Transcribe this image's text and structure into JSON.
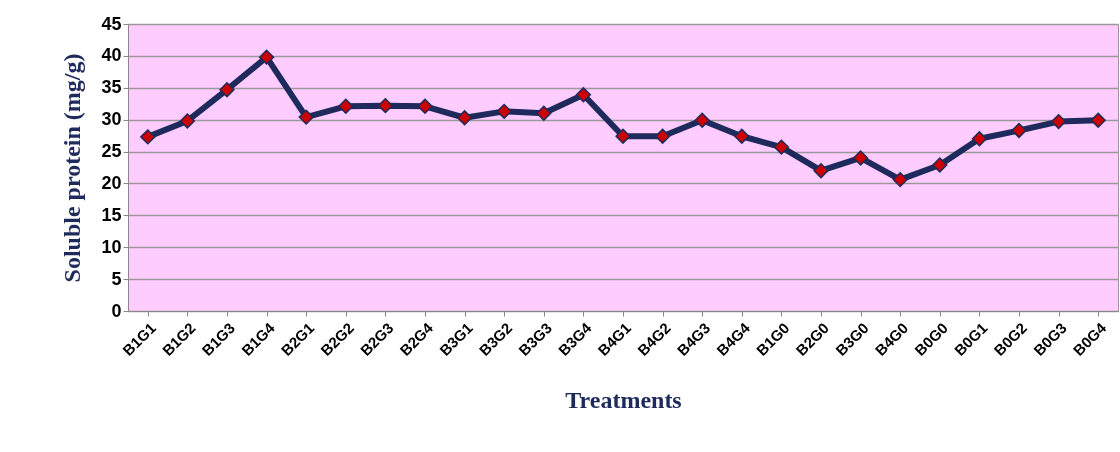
{
  "chart_data": {
    "type": "line",
    "xlabel": "Treatments",
    "ylabel": "Soluble protein (mg/g)",
    "categories": [
      "B1G1",
      "B1G2",
      "B1G3",
      "B1G4",
      "B2G1",
      "B2G2",
      "B2G3",
      "B2G4",
      "B3G1",
      "B3G2",
      "B3G3",
      "B3G4",
      "B4G1",
      "B4G2",
      "B4G3",
      "B4G4",
      "B1G0",
      "B2G0",
      "B3G0",
      "B4G0",
      "B0G0",
      "B0G1",
      "B0G2",
      "B0G3",
      "B0G4"
    ],
    "series": [
      {
        "color": "#1f2a5c",
        "values": [
          27.3,
          29.8,
          34.7,
          39.8,
          30.4,
          32.1,
          32.2,
          32.1,
          30.3,
          31.3,
          31.0,
          33.9,
          27.4,
          27.4,
          29.9,
          27.4,
          25.7,
          22.0,
          24.0,
          20.6,
          22.9,
          27.0,
          28.3,
          29.7,
          29.9
        ]
      }
    ],
    "ylim": [
      0,
      45
    ],
    "yticks": [
      0,
      5,
      10,
      15,
      20,
      25,
      30,
      35,
      40,
      45
    ],
    "grid": "y",
    "marker": "diamond",
    "line_style": "solid"
  }
}
